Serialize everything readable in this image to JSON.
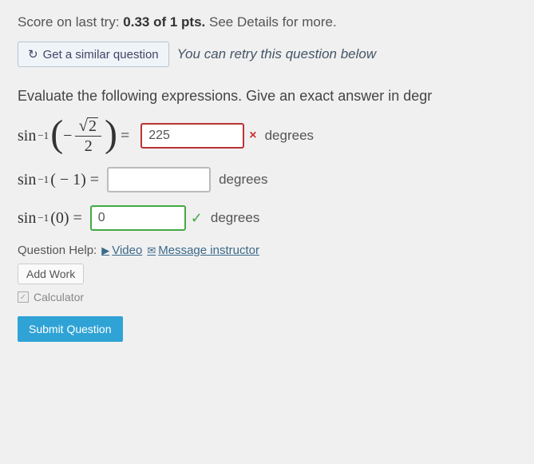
{
  "score": {
    "prefix": "Score on last try: ",
    "value": "0.33 of 1 pts.",
    "suffix": " See Details for more."
  },
  "similar": {
    "button": "Get a similar question",
    "retry": "You can retry this question below"
  },
  "prompt": "Evaluate the following expressions. Give an exact answer in degr",
  "rows": [
    {
      "fn": "sin",
      "exp": "−1",
      "big": true,
      "inner_prefix": "−",
      "frac_num_sqrt": "2",
      "frac_den": "2",
      "eq": "=",
      "value": "225",
      "status": "wrong",
      "mark": "×",
      "unit": "degrees"
    },
    {
      "fn": "sin",
      "exp": "−1",
      "arg": "( − 1) =",
      "value": "",
      "status": "neutral",
      "unit": "degrees"
    },
    {
      "fn": "sin",
      "exp": "−1",
      "arg": "(0) =",
      "value": "0",
      "status": "correct",
      "mark": "✓",
      "unit": "degrees"
    }
  ],
  "help": {
    "label": "Question Help:",
    "video": "Video",
    "message": "Message instructor",
    "add_work": "Add Work",
    "calculator": "Calculator"
  },
  "submit": "Submit Question",
  "colors": {
    "wrong_border": "#b33",
    "correct_border": "#4a4",
    "neutral_border": "#bbb",
    "link": "#3a6a8a",
    "submit_bg": "#2fa3d6",
    "background": "#f0f0f0"
  }
}
